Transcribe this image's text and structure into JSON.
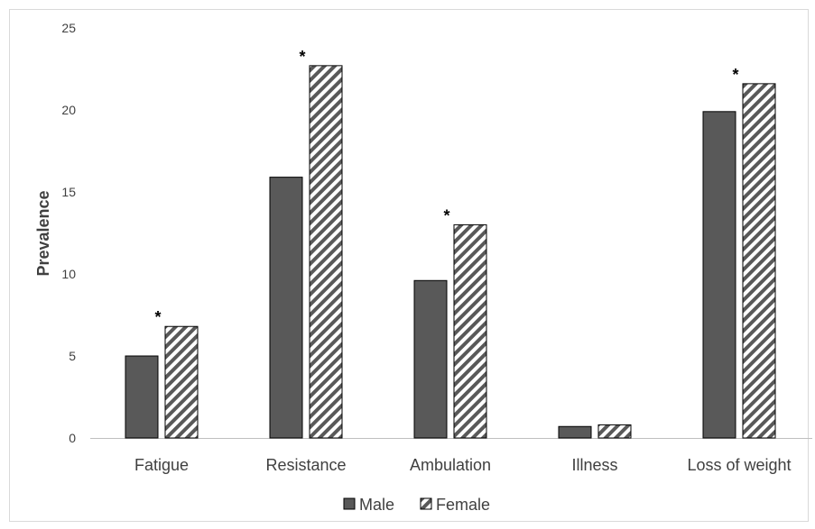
{
  "chart_data": {
    "type": "bar",
    "title": "",
    "xlabel": "",
    "ylabel": "Prevalence",
    "ylim": [
      0,
      25
    ],
    "yticks": [
      0,
      5,
      10,
      15,
      20,
      25
    ],
    "grid": false,
    "legend_position": "bottom",
    "categories": [
      "Fatigue",
      "Resistance",
      "Ambulation",
      "Illness",
      "Loss of weight"
    ],
    "series": [
      {
        "name": "Male",
        "pattern": "solid",
        "color": "#595959",
        "values": [
          5.0,
          15.9,
          9.6,
          0.7,
          19.9
        ]
      },
      {
        "name": "Female",
        "pattern": "diagonal-hatch",
        "color": "#595959",
        "values": [
          6.8,
          22.7,
          13.0,
          0.8,
          21.6
        ]
      }
    ],
    "annotations": [
      {
        "category": "Fatigue",
        "text": "*"
      },
      {
        "category": "Resistance",
        "text": "*"
      },
      {
        "category": "Ambulation",
        "text": "*"
      },
      {
        "category": "Loss of weight",
        "text": "*"
      }
    ]
  }
}
